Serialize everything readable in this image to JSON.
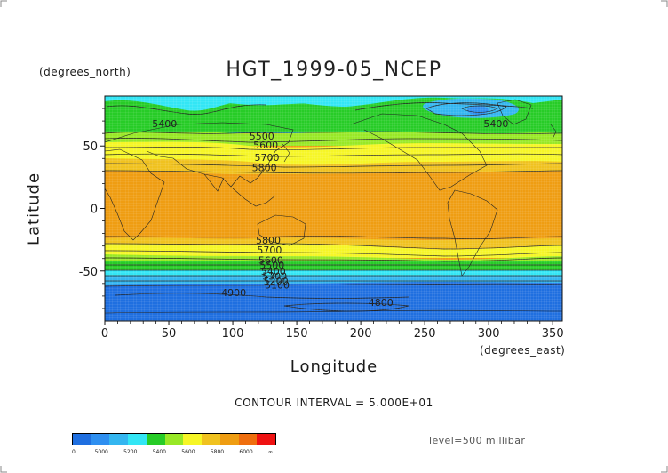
{
  "title": "HGT_1999-05_NCEP",
  "y_unit": "(degrees_north)",
  "x_unit": "(degrees_east)",
  "x_label": "Longitude",
  "y_label": "Latitude",
  "contour_interval": "CONTOUR INTERVAL = 5.000E+01",
  "level": "level=500 millibar",
  "axes": {
    "x_ticks": [
      "0",
      "50",
      "100",
      "150",
      "200",
      "250",
      "300",
      "350"
    ],
    "x_tick_values": [
      0,
      50,
      100,
      150,
      200,
      250,
      300,
      350
    ],
    "y_ticks": [
      "50",
      "0",
      "-50"
    ],
    "y_tick_values": [
      50,
      0,
      -50
    ],
    "xlim": [
      0,
      357.5
    ],
    "ylim": [
      -90,
      90
    ]
  },
  "contour_labels": [
    {
      "text": "5400",
      "lon": 37,
      "lat": 65
    },
    {
      "text": "5500",
      "lon": 113,
      "lat": 55
    },
    {
      "text": "5600",
      "lon": 116,
      "lat": 48
    },
    {
      "text": "5700",
      "lon": 117,
      "lat": 38
    },
    {
      "text": "5800",
      "lon": 115,
      "lat": 30
    },
    {
      "text": "5400",
      "lon": 296,
      "lat": 65
    },
    {
      "text": "5800",
      "lon": 118,
      "lat": -28
    },
    {
      "text": "5700",
      "lon": 119,
      "lat": -36
    },
    {
      "text": "5600",
      "lon": 120,
      "lat": -44
    },
    {
      "text": "5500",
      "lon": 121,
      "lat": -48
    },
    {
      "text": "5400",
      "lon": 122,
      "lat": -53
    },
    {
      "text": "5300",
      "lon": 123,
      "lat": -57
    },
    {
      "text": "5200",
      "lon": 124,
      "lat": -61
    },
    {
      "text": "5100",
      "lon": 125,
      "lat": -64
    },
    {
      "text": "4900",
      "lon": 91,
      "lat": -70
    },
    {
      "text": "4800",
      "lon": 206,
      "lat": -78
    }
  ],
  "colorbar": {
    "colors": [
      "#1f6fe0",
      "#2e8ff0",
      "#34b6f0",
      "#33e6f5",
      "#27cc27",
      "#98e826",
      "#f6f626",
      "#f0c21f",
      "#ef9d12",
      "#ef6e0e",
      "#ef1212"
    ],
    "labels": [
      "0",
      "5000",
      "5200",
      "5400",
      "5600",
      "5800",
      "6000",
      "∞"
    ]
  }
}
